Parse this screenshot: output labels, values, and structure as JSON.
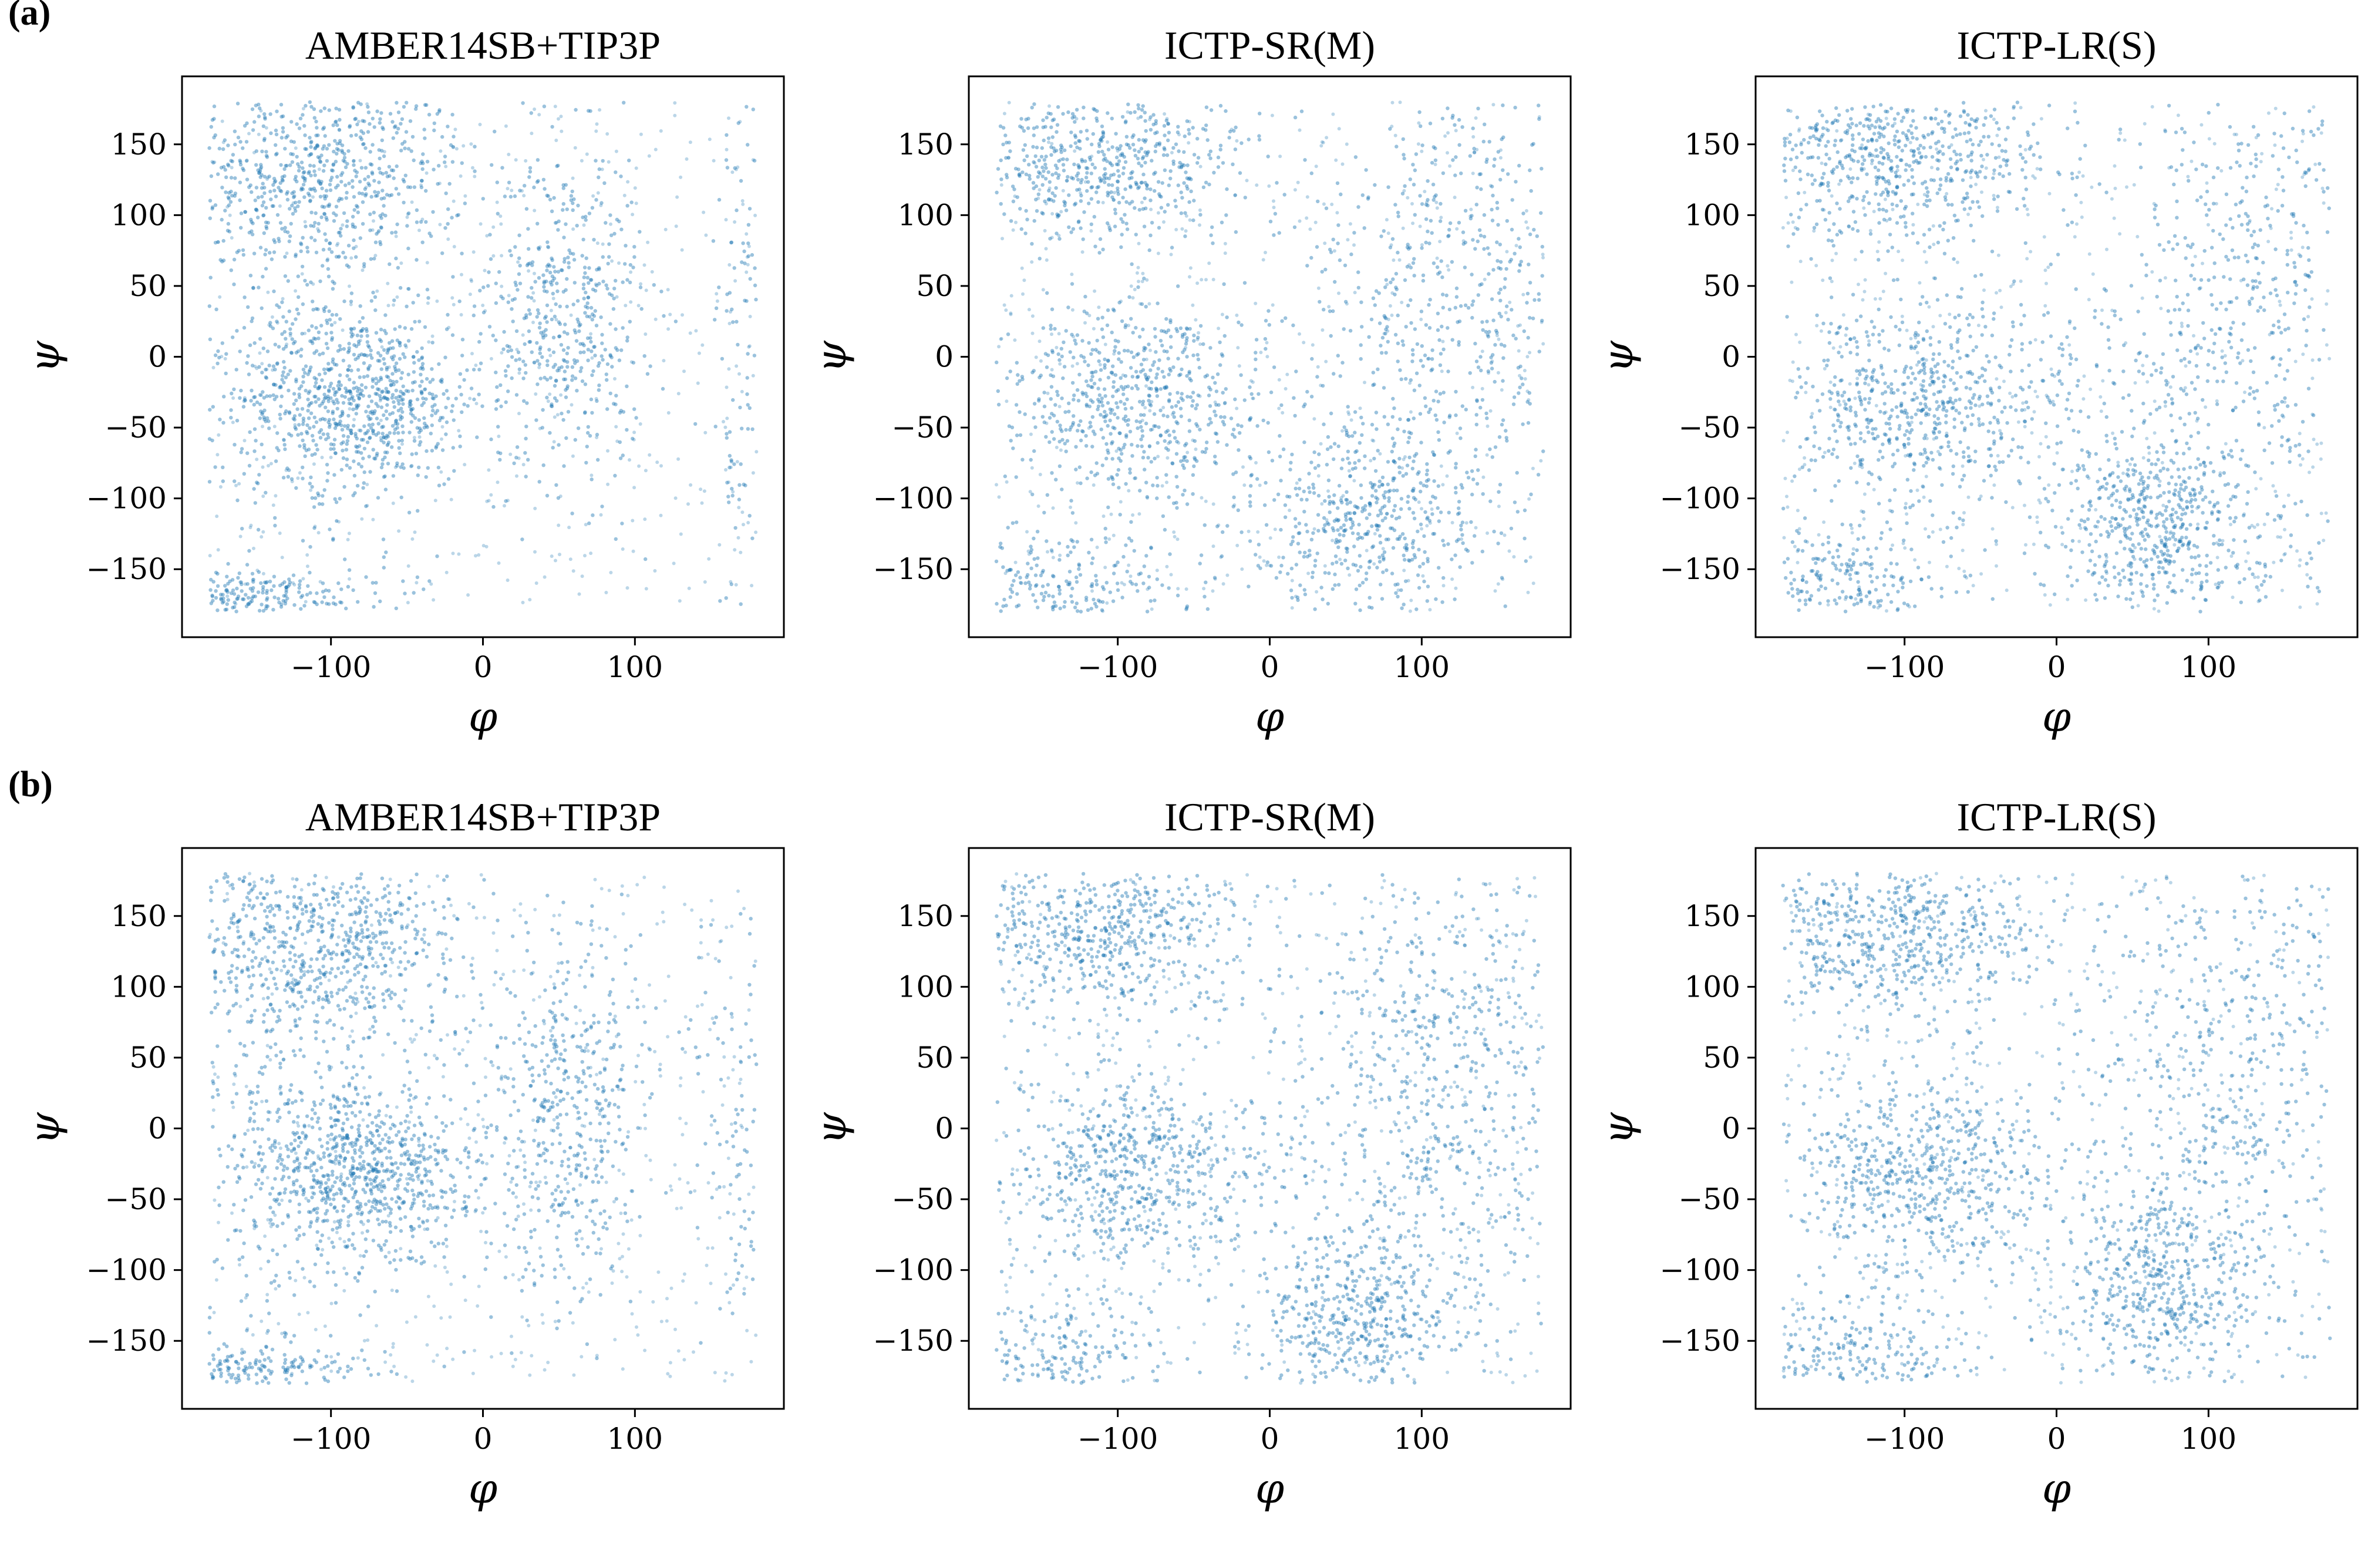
{
  "panel_labels": [
    "(a)",
    "(b)"
  ],
  "point_color": "#1f77b4",
  "chart_data": [
    {
      "type": "scatter",
      "row_label": "(a)",
      "title": "AMBER14SB+TIP3P",
      "xlabel": "φ",
      "ylabel": "ψ",
      "xlim": [
        -198,
        198
      ],
      "ylim": [
        -198,
        198
      ],
      "xticks": [
        -100,
        0,
        100
      ],
      "yticks": [
        -150,
        -100,
        -50,
        0,
        50,
        100,
        150
      ],
      "xtick_labels": [
        "−100",
        "0",
        "100"
      ],
      "ytick_labels": [
        "−150",
        "−100",
        "−50",
        "0",
        "50",
        "100",
        "150"
      ],
      "grid": false,
      "legend": "none",
      "point_color": "#1f77b4",
      "domain": [
        -180,
        180
      ],
      "density_regions": [
        {
          "phi": -110,
          "psi": 130,
          "spread_phi": 50,
          "spread_psi": 35,
          "weight": 3
        },
        {
          "phi": -80,
          "psi": -30,
          "spread_phi": 40,
          "spread_psi": 30,
          "weight": 3
        },
        {
          "phi": 55,
          "psi": 30,
          "spread_phi": 25,
          "spread_psi": 60,
          "weight": 2
        },
        {
          "phi": -150,
          "psi": -170,
          "spread_phi": 40,
          "spread_psi": 10,
          "weight": 1
        },
        {
          "phi": -120,
          "psi": 0,
          "spread_phi": 50,
          "spread_psi": 80,
          "weight": 1.5
        },
        {
          "phi": 170,
          "psi": 0,
          "spread_phi": 12,
          "spread_psi": 120,
          "weight": 0.5
        }
      ]
    },
    {
      "type": "scatter",
      "row_label": "(a)",
      "title": "ICTP-SR(M)",
      "xlabel": "φ",
      "ylabel": "ψ",
      "xlim": [
        -198,
        198
      ],
      "ylim": [
        -198,
        198
      ],
      "xticks": [
        -100,
        0,
        100
      ],
      "yticks": [
        -150,
        -100,
        -50,
        0,
        50,
        100,
        150
      ],
      "xtick_labels": [
        "−100",
        "0",
        "100"
      ],
      "ytick_labels": [
        "−150",
        "−100",
        "−50",
        "0",
        "50",
        "100",
        "150"
      ],
      "grid": false,
      "legend": "none",
      "point_color": "#1f77b4",
      "domain": [
        -180,
        180
      ],
      "density_regions": [
        {
          "phi": -110,
          "psi": 140,
          "spread_phi": 50,
          "spread_psi": 30,
          "weight": 2.5
        },
        {
          "phi": -90,
          "psi": -30,
          "spread_phi": 45,
          "spread_psi": 35,
          "weight": 2.5
        },
        {
          "phi": 60,
          "psi": -120,
          "spread_phi": 35,
          "spread_psi": 35,
          "weight": 1.5
        },
        {
          "phi": 120,
          "psi": 80,
          "spread_phi": 50,
          "spread_psi": 70,
          "weight": 1.5
        },
        {
          "phi": -140,
          "psi": -160,
          "spread_phi": 40,
          "spread_psi": 20,
          "weight": 1
        },
        {
          "phi": 100,
          "psi": -50,
          "spread_phi": 60,
          "spread_psi": 80,
          "weight": 1.5
        }
      ]
    },
    {
      "type": "scatter",
      "row_label": "(a)",
      "title": "ICTP-LR(S)",
      "xlabel": "φ",
      "ylabel": "ψ",
      "xlim": [
        -198,
        198
      ],
      "ylim": [
        -198,
        198
      ],
      "xticks": [
        -100,
        0,
        100
      ],
      "yticks": [
        -150,
        -100,
        -50,
        0,
        50,
        100,
        150
      ],
      "xtick_labels": [
        "−100",
        "0",
        "100"
      ],
      "ytick_labels": [
        "−150",
        "−100",
        "−50",
        "0",
        "50",
        "100",
        "150"
      ],
      "grid": false,
      "legend": "none",
      "point_color": "#1f77b4",
      "domain": [
        -180,
        180
      ],
      "density_regions": [
        {
          "phi": -110,
          "psi": 140,
          "spread_phi": 50,
          "spread_psi": 30,
          "weight": 2.5
        },
        {
          "phi": -90,
          "psi": -30,
          "spread_phi": 45,
          "spread_psi": 35,
          "weight": 2.5
        },
        {
          "phi": 65,
          "psi": -120,
          "spread_phi": 30,
          "spread_psi": 30,
          "weight": 1.8
        },
        {
          "phi": 120,
          "psi": 80,
          "spread_phi": 50,
          "spread_psi": 70,
          "weight": 1.3
        },
        {
          "phi": -140,
          "psi": -160,
          "spread_phi": 40,
          "spread_psi": 20,
          "weight": 1
        },
        {
          "phi": 100,
          "psi": -50,
          "spread_phi": 60,
          "spread_psi": 80,
          "weight": 1.3
        }
      ]
    },
    {
      "type": "scatter",
      "row_label": "(b)",
      "title": "AMBER14SB+TIP3P",
      "xlabel": "φ",
      "ylabel": "ψ",
      "xlim": [
        -198,
        198
      ],
      "ylim": [
        -198,
        198
      ],
      "xticks": [
        -100,
        0,
        100
      ],
      "yticks": [
        -150,
        -100,
        -50,
        0,
        50,
        100,
        150
      ],
      "xtick_labels": [
        "−100",
        "0",
        "100"
      ],
      "ytick_labels": [
        "−150",
        "−100",
        "−50",
        "0",
        "50",
        "100",
        "150"
      ],
      "grid": false,
      "legend": "none",
      "point_color": "#1f77b4",
      "domain": [
        -180,
        180
      ],
      "density_regions": [
        {
          "phi": -110,
          "psi": 130,
          "spread_phi": 50,
          "spread_psi": 35,
          "weight": 3
        },
        {
          "phi": -80,
          "psi": -30,
          "spread_phi": 40,
          "spread_psi": 30,
          "weight": 3
        },
        {
          "phi": 55,
          "psi": 10,
          "spread_phi": 25,
          "spread_psi": 70,
          "weight": 2
        },
        {
          "phi": -150,
          "psi": -170,
          "spread_phi": 40,
          "spread_psi": 10,
          "weight": 1
        },
        {
          "phi": -120,
          "psi": 0,
          "spread_phi": 50,
          "spread_psi": 80,
          "weight": 1.5
        },
        {
          "phi": 170,
          "psi": 0,
          "spread_phi": 15,
          "spread_psi": 120,
          "weight": 0.6
        }
      ]
    },
    {
      "type": "scatter",
      "row_label": "(b)",
      "title": "ICTP-SR(M)",
      "xlabel": "φ",
      "ylabel": "ψ",
      "xlim": [
        -198,
        198
      ],
      "ylim": [
        -198,
        198
      ],
      "xticks": [
        -100,
        0,
        100
      ],
      "yticks": [
        -150,
        -100,
        -50,
        0,
        50,
        100,
        150
      ],
      "xtick_labels": [
        "−100",
        "0",
        "100"
      ],
      "ytick_labels": [
        "−150",
        "−100",
        "−50",
        "0",
        "50",
        "100",
        "150"
      ],
      "grid": false,
      "legend": "none",
      "point_color": "#1f77b4",
      "domain": [
        -180,
        180
      ],
      "density_regions": [
        {
          "phi": -110,
          "psi": 140,
          "spread_phi": 50,
          "spread_psi": 30,
          "weight": 2.5
        },
        {
          "phi": -90,
          "psi": -30,
          "spread_phi": 45,
          "spread_psi": 35,
          "weight": 2.5
        },
        {
          "phi": 55,
          "psi": -135,
          "spread_phi": 35,
          "spread_psi": 30,
          "weight": 1.8
        },
        {
          "phi": 120,
          "psi": 80,
          "spread_phi": 50,
          "spread_psi": 70,
          "weight": 1.5
        },
        {
          "phi": -140,
          "psi": -160,
          "spread_phi": 40,
          "spread_psi": 20,
          "weight": 1
        },
        {
          "phi": 100,
          "psi": -50,
          "spread_phi": 60,
          "spread_psi": 80,
          "weight": 1.4
        }
      ]
    },
    {
      "type": "scatter",
      "row_label": "(b)",
      "title": "ICTP-LR(S)",
      "xlabel": "φ",
      "ylabel": "ψ",
      "xlim": [
        -198,
        198
      ],
      "ylim": [
        -198,
        198
      ],
      "xticks": [
        -100,
        0,
        100
      ],
      "yticks": [
        -150,
        -100,
        -50,
        0,
        50,
        100,
        150
      ],
      "xtick_labels": [
        "−100",
        "0",
        "100"
      ],
      "ytick_labels": [
        "−150",
        "−100",
        "−50",
        "0",
        "50",
        "100",
        "150"
      ],
      "grid": false,
      "legend": "none",
      "point_color": "#1f77b4",
      "domain": [
        -180,
        180
      ],
      "density_regions": [
        {
          "phi": -110,
          "psi": 140,
          "spread_phi": 50,
          "spread_psi": 30,
          "weight": 2.5
        },
        {
          "phi": -90,
          "psi": -30,
          "spread_phi": 45,
          "spread_psi": 35,
          "weight": 2.5
        },
        {
          "phi": 65,
          "psi": -110,
          "spread_phi": 30,
          "spread_psi": 30,
          "weight": 1.6
        },
        {
          "phi": 120,
          "psi": 80,
          "spread_phi": 50,
          "spread_psi": 70,
          "weight": 1.3
        },
        {
          "phi": -140,
          "psi": -160,
          "spread_phi": 40,
          "spread_psi": 20,
          "weight": 1
        },
        {
          "phi": 100,
          "psi": -50,
          "spread_phi": 60,
          "spread_psi": 80,
          "weight": 1.3
        }
      ]
    }
  ]
}
